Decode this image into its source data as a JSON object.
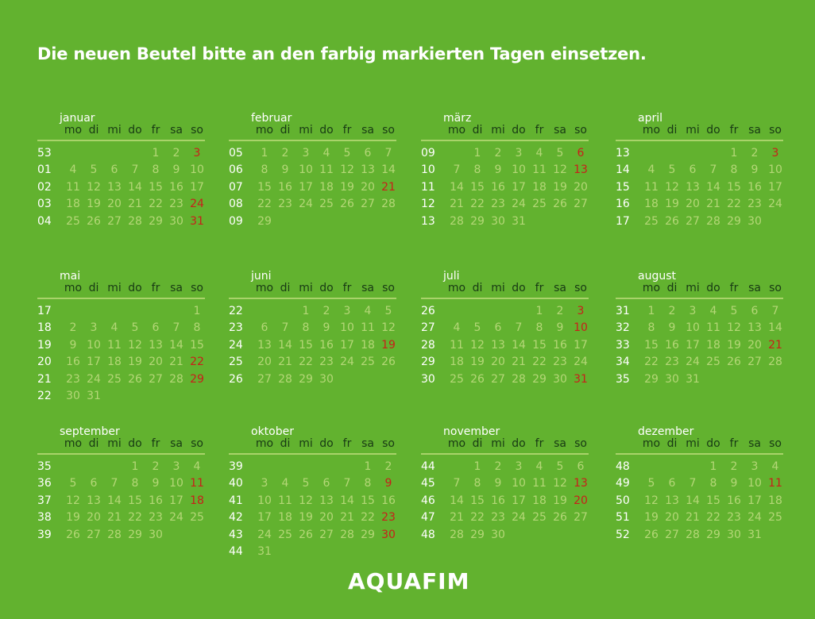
{
  "title": "Die neuen Beutel bitte an den farbig markierten Tagen einsetzen.",
  "weekdays": [
    "mo",
    "di",
    "mi",
    "do",
    "fr",
    "sa",
    "so"
  ],
  "logo": "AQUAFIM",
  "colors": {
    "background": "#62b22f",
    "day": "#b4d777",
    "marked": "#c8201a",
    "header": "#183a14"
  },
  "months": [
    {
      "name": "januar",
      "weeks": [
        {
          "w": "53",
          "days": [
            "",
            "",
            "",
            "",
            "1",
            "2",
            "3"
          ]
        },
        {
          "w": "01",
          "days": [
            "4",
            "5",
            "6",
            "7",
            "8",
            "9",
            "10"
          ]
        },
        {
          "w": "02",
          "days": [
            "11",
            "12",
            "13",
            "14",
            "15",
            "16",
            "17"
          ]
        },
        {
          "w": "03",
          "days": [
            "18",
            "19",
            "20",
            "21",
            "22",
            "23",
            "24"
          ]
        },
        {
          "w": "04",
          "days": [
            "25",
            "26",
            "27",
            "28",
            "29",
            "30",
            "31"
          ]
        }
      ],
      "marked": [
        "3",
        "24",
        "31"
      ]
    },
    {
      "name": "februar",
      "weeks": [
        {
          "w": "05",
          "days": [
            "1",
            "2",
            "3",
            "4",
            "5",
            "6",
            "7"
          ]
        },
        {
          "w": "06",
          "days": [
            "8",
            "9",
            "10",
            "11",
            "12",
            "13",
            "14"
          ]
        },
        {
          "w": "07",
          "days": [
            "15",
            "16",
            "17",
            "18",
            "19",
            "20",
            "21"
          ]
        },
        {
          "w": "08",
          "days": [
            "22",
            "23",
            "24",
            "25",
            "26",
            "27",
            "28"
          ]
        },
        {
          "w": "09",
          "days": [
            "29",
            "",
            "",
            "",
            "",
            "",
            ""
          ]
        }
      ],
      "marked": [
        "21"
      ]
    },
    {
      "name": "märz",
      "weeks": [
        {
          "w": "09",
          "days": [
            "",
            "1",
            "2",
            "3",
            "4",
            "5",
            "6"
          ]
        },
        {
          "w": "10",
          "days": [
            "7",
            "8",
            "9",
            "10",
            "11",
            "12",
            "13"
          ]
        },
        {
          "w": "11",
          "days": [
            "14",
            "15",
            "16",
            "17",
            "18",
            "19",
            "20"
          ]
        },
        {
          "w": "12",
          "days": [
            "21",
            "22",
            "23",
            "24",
            "25",
            "26",
            "27"
          ]
        },
        {
          "w": "13",
          "days": [
            "28",
            "29",
            "30",
            "31",
            "",
            "",
            ""
          ]
        }
      ],
      "marked": [
        "6",
        "13"
      ]
    },
    {
      "name": "april",
      "weeks": [
        {
          "w": "13",
          "days": [
            "",
            "",
            "",
            "",
            "1",
            "2",
            "3"
          ]
        },
        {
          "w": "14",
          "days": [
            "4",
            "5",
            "6",
            "7",
            "8",
            "9",
            "10"
          ]
        },
        {
          "w": "15",
          "days": [
            "11",
            "12",
            "13",
            "14",
            "15",
            "16",
            "17"
          ]
        },
        {
          "w": "16",
          "days": [
            "18",
            "19",
            "20",
            "21",
            "22",
            "23",
            "24"
          ]
        },
        {
          "w": "17",
          "days": [
            "25",
            "26",
            "27",
            "28",
            "29",
            "30",
            ""
          ]
        }
      ],
      "marked": [
        "3"
      ]
    },
    {
      "name": "mai",
      "weeks": [
        {
          "w": "17",
          "days": [
            "",
            "",
            "",
            "",
            "",
            "",
            "1"
          ]
        },
        {
          "w": "18",
          "days": [
            "2",
            "3",
            "4",
            "5",
            "6",
            "7",
            "8"
          ]
        },
        {
          "w": "19",
          "days": [
            "9",
            "10",
            "11",
            "12",
            "13",
            "14",
            "15"
          ]
        },
        {
          "w": "20",
          "days": [
            "16",
            "17",
            "18",
            "19",
            "20",
            "21",
            "22"
          ]
        },
        {
          "w": "21",
          "days": [
            "23",
            "24",
            "25",
            "26",
            "27",
            "28",
            "29"
          ]
        },
        {
          "w": "22",
          "days": [
            "30",
            "31",
            "",
            "",
            "",
            "",
            ""
          ]
        }
      ],
      "marked": [
        "22",
        "29"
      ]
    },
    {
      "name": "juni",
      "weeks": [
        {
          "w": "22",
          "days": [
            "",
            "",
            "1",
            "2",
            "3",
            "4",
            "5"
          ]
        },
        {
          "w": "23",
          "days": [
            "6",
            "7",
            "8",
            "9",
            "10",
            "11",
            "12"
          ]
        },
        {
          "w": "24",
          "days": [
            "13",
            "14",
            "15",
            "16",
            "17",
            "18",
            "19"
          ]
        },
        {
          "w": "25",
          "days": [
            "20",
            "21",
            "22",
            "23",
            "24",
            "25",
            "26"
          ]
        },
        {
          "w": "26",
          "days": [
            "27",
            "28",
            "29",
            "30",
            "",
            "",
            ""
          ]
        }
      ],
      "marked": [
        "19"
      ]
    },
    {
      "name": "juli",
      "weeks": [
        {
          "w": "26",
          "days": [
            "",
            "",
            "",
            "",
            "1",
            "2",
            "3"
          ]
        },
        {
          "w": "27",
          "days": [
            "4",
            "5",
            "6",
            "7",
            "8",
            "9",
            "10"
          ]
        },
        {
          "w": "28",
          "days": [
            "11",
            "12",
            "13",
            "14",
            "15",
            "16",
            "17"
          ]
        },
        {
          "w": "29",
          "days": [
            "18",
            "19",
            "20",
            "21",
            "22",
            "23",
            "24"
          ]
        },
        {
          "w": "30",
          "days": [
            "25",
            "26",
            "27",
            "28",
            "29",
            "30",
            "31"
          ]
        }
      ],
      "marked": [
        "3",
        "10",
        "31"
      ]
    },
    {
      "name": "august",
      "weeks": [
        {
          "w": "31",
          "days": [
            "1",
            "2",
            "3",
            "4",
            "5",
            "6",
            "7"
          ]
        },
        {
          "w": "32",
          "days": [
            "8",
            "9",
            "10",
            "11",
            "12",
            "13",
            "14"
          ]
        },
        {
          "w": "33",
          "days": [
            "15",
            "16",
            "17",
            "18",
            "19",
            "20",
            "21"
          ]
        },
        {
          "w": "34",
          "days": [
            "22",
            "23",
            "24",
            "25",
            "26",
            "27",
            "28"
          ]
        },
        {
          "w": "35",
          "days": [
            "29",
            "30",
            "31",
            "",
            "",
            "",
            ""
          ]
        }
      ],
      "marked": [
        "21"
      ]
    },
    {
      "name": "september",
      "weeks": [
        {
          "w": "35",
          "days": [
            "",
            "",
            "",
            "1",
            "2",
            "3",
            "4"
          ]
        },
        {
          "w": "36",
          "days": [
            "5",
            "6",
            "7",
            "8",
            "9",
            "10",
            "11"
          ]
        },
        {
          "w": "37",
          "days": [
            "12",
            "13",
            "14",
            "15",
            "16",
            "17",
            "18"
          ]
        },
        {
          "w": "38",
          "days": [
            "19",
            "20",
            "21",
            "22",
            "23",
            "24",
            "25"
          ]
        },
        {
          "w": "39",
          "days": [
            "26",
            "27",
            "28",
            "29",
            "30",
            "",
            ""
          ]
        }
      ],
      "marked": [
        "11",
        "18"
      ]
    },
    {
      "name": "oktober",
      "weeks": [
        {
          "w": "39",
          "days": [
            "",
            "",
            "",
            "",
            "",
            "1",
            "2"
          ]
        },
        {
          "w": "40",
          "days": [
            "3",
            "4",
            "5",
            "6",
            "7",
            "8",
            "9"
          ]
        },
        {
          "w": "41",
          "days": [
            "10",
            "11",
            "12",
            "13",
            "14",
            "15",
            "16"
          ]
        },
        {
          "w": "42",
          "days": [
            "17",
            "18",
            "19",
            "20",
            "21",
            "22",
            "23"
          ]
        },
        {
          "w": "43",
          "days": [
            "24",
            "25",
            "26",
            "27",
            "28",
            "29",
            "30"
          ]
        },
        {
          "w": "44",
          "days": [
            "31",
            "",
            "",
            "",
            "",
            "",
            ""
          ]
        }
      ],
      "marked": [
        "9",
        "23",
        "30"
      ]
    },
    {
      "name": "november",
      "weeks": [
        {
          "w": "44",
          "days": [
            "",
            "1",
            "2",
            "3",
            "4",
            "5",
            "6"
          ]
        },
        {
          "w": "45",
          "days": [
            "7",
            "8",
            "9",
            "10",
            "11",
            "12",
            "13"
          ]
        },
        {
          "w": "46",
          "days": [
            "14",
            "15",
            "16",
            "17",
            "18",
            "19",
            "20"
          ]
        },
        {
          "w": "47",
          "days": [
            "21",
            "22",
            "23",
            "24",
            "25",
            "26",
            "27"
          ]
        },
        {
          "w": "48",
          "days": [
            "28",
            "29",
            "30",
            "",
            "",
            "",
            ""
          ]
        }
      ],
      "marked": [
        "13",
        "20"
      ]
    },
    {
      "name": "dezember",
      "weeks": [
        {
          "w": "48",
          "days": [
            "",
            "",
            "",
            "1",
            "2",
            "3",
            "4"
          ]
        },
        {
          "w": "49",
          "days": [
            "5",
            "6",
            "7",
            "8",
            "9",
            "10",
            "11"
          ]
        },
        {
          "w": "50",
          "days": [
            "12",
            "13",
            "14",
            "15",
            "16",
            "17",
            "18"
          ]
        },
        {
          "w": "51",
          "days": [
            "19",
            "20",
            "21",
            "22",
            "23",
            "24",
            "25"
          ]
        },
        {
          "w": "52",
          "days": [
            "26",
            "27",
            "28",
            "29",
            "30",
            "31",
            ""
          ]
        }
      ],
      "marked": [
        "11"
      ]
    }
  ]
}
